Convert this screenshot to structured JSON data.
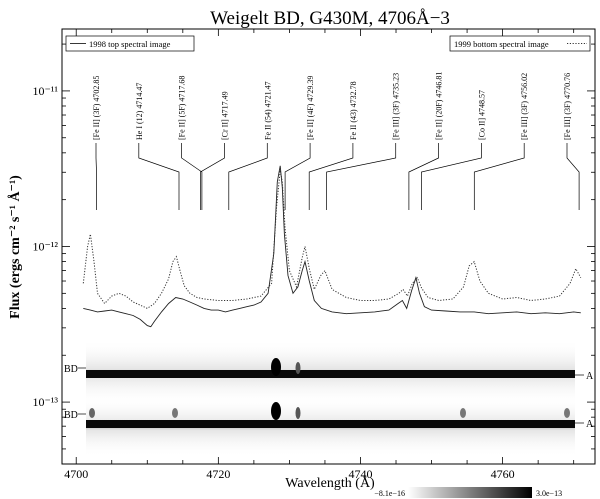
{
  "chart_data": {
    "type": "line",
    "title": "Weigelt BD, G430M, 4706Å−3",
    "xlabel": "Wavelength (Å)",
    "ylabel": "Flux (ergs cm⁻² s⁻¹ Å⁻¹)",
    "xlim": [
      4698,
      4773
    ],
    "ylim": [
      4e-14,
      2.5e-11
    ],
    "yscale": "log",
    "x_ticks": [
      4700,
      4720,
      4740,
      4760
    ],
    "y_ticks": [
      {
        "value": 1e-13,
        "label": "10⁻¹³"
      },
      {
        "value": 1e-12,
        "label": "10⁻¹²"
      },
      {
        "value": 1e-11,
        "label": "10⁻¹¹"
      }
    ],
    "legend": {
      "top_left": "1998 top spectral image",
      "top_right": "1999 bottom spectral image"
    },
    "series": [
      {
        "name": "1998 top spectral image",
        "style": "solid",
        "color": "#222222",
        "x": [
          4701,
          4702,
          4703,
          4704,
          4705,
          4706,
          4707,
          4708,
          4709,
          4710,
          4710.5,
          4711,
          4712,
          4713,
          4714,
          4715,
          4716,
          4717,
          4718,
          4719,
          4720,
          4721,
          4722,
          4723,
          4724,
          4725,
          4726,
          4727,
          4727.8,
          4728.3,
          4728.7,
          4729.0,
          4729.3,
          4729.8,
          4730.5,
          4731.2,
          4731.8,
          4732.2,
          4732.8,
          4733.5,
          4734.5,
          4736,
          4738,
          4740,
          4742,
          4744,
          4745.3,
          4745.9,
          4746.5,
          4747.2,
          4747.8,
          4748.3,
          4749,
          4750,
          4752,
          4754,
          4756,
          4758,
          4760,
          4762,
          4764,
          4766,
          4768,
          4770,
          4771
        ],
        "values": [
          4e-13,
          3.9e-13,
          3.8e-13,
          3.85e-13,
          3.9e-13,
          3.8e-13,
          3.7e-13,
          3.6e-13,
          3.4e-13,
          3.1e-13,
          3.05e-13,
          3.3e-13,
          3.8e-13,
          4.3e-13,
          4.7e-13,
          4.6e-13,
          4.4e-13,
          4.2e-13,
          4e-13,
          3.9e-13,
          3.9e-13,
          3.8e-13,
          3.9e-13,
          4e-13,
          4.1e-13,
          4.2e-13,
          4.4e-13,
          5e-13,
          9e-13,
          2.6e-12,
          3.3e-12,
          2.4e-12,
          1.2e-12,
          6.5e-13,
          5e-13,
          5.5e-13,
          7e-13,
          8e-13,
          6e-13,
          4.5e-13,
          4e-13,
          3.8e-13,
          3.7e-13,
          3.75e-13,
          3.8e-13,
          3.9e-13,
          4.3e-13,
          4.5e-13,
          4e-13,
          5.2e-13,
          6.3e-13,
          5e-13,
          4.1e-13,
          3.9e-13,
          3.85e-13,
          3.8e-13,
          3.8e-13,
          3.7e-13,
          3.75e-13,
          3.8e-13,
          3.7e-13,
          3.75e-13,
          3.7e-13,
          3.8e-13,
          3.75e-13
        ]
      },
      {
        "name": "1999 bottom spectral image",
        "style": "dotted",
        "color": "#333333",
        "x": [
          4701,
          4701.6,
          4702.0,
          4702.5,
          4703,
          4704,
          4705,
          4706,
          4707,
          4708,
          4709,
          4710,
          4711,
          4712,
          4713,
          4713.6,
          4714.1,
          4714.6,
          4715.2,
          4716,
          4717,
          4718,
          4720,
          4722,
          4724,
          4726,
          4727.5,
          4728.2,
          4728.7,
          4729.0,
          4729.4,
          4730,
          4731,
          4731.8,
          4732.2,
          4732.8,
          4733.5,
          4734.4,
          4735,
          4736,
          4738,
          4740,
          4742,
          4744,
          4745.4,
          4746,
          4746.6,
          4747.3,
          4748,
          4748.6,
          4749.5,
          4751,
          4753,
          4754.5,
          4755.3,
          4756,
          4756.8,
          4758,
          4760,
          4762,
          4764,
          4766,
          4768,
          4769.5,
          4770.3,
          4771
        ],
        "values": [
          5.8e-13,
          1e-12,
          1.2e-12,
          8e-13,
          5e-13,
          4.3e-13,
          4.8e-13,
          5e-13,
          4.8e-13,
          4.4e-13,
          4.2e-13,
          4e-13,
          4.3e-13,
          5e-13,
          6.2e-13,
          8e-13,
          8.6e-13,
          7e-13,
          5.6e-13,
          5e-13,
          4.7e-13,
          4.6e-13,
          4.5e-13,
          4.5e-13,
          4.6e-13,
          4.8e-13,
          5.8e-13,
          1.8e-12,
          3.1e-12,
          2.6e-12,
          1.3e-12,
          7e-13,
          5.5e-13,
          8.5e-13,
          1e-12,
          7.2e-13,
          5.3e-13,
          6.5e-13,
          7e-13,
          5.3e-13,
          4.7e-13,
          4.5e-13,
          4.5e-13,
          4.6e-13,
          5e-13,
          5.3e-13,
          4.8e-13,
          5.8e-13,
          6.3e-13,
          5.4e-13,
          4.7e-13,
          4.5e-13,
          4.6e-13,
          5.5e-13,
          7.5e-13,
          8e-13,
          6e-13,
          5e-13,
          4.6e-13,
          4.7e-13,
          4.5e-13,
          4.6e-13,
          4.8e-13,
          5.8e-13,
          7.2e-13,
          6.3e-13
        ]
      }
    ],
    "line_ids": [
      {
        "label": "[Fe II] (3F) 4702.85",
        "x": 4702.85
      },
      {
        "label": "He I (12) 4714.47",
        "x": 4714.47
      },
      {
        "label": "[Fe II] (5F) 4717.68",
        "x": 4717.68
      },
      {
        "label": "[Cr II] 4717.49",
        "x": 4717.49
      },
      {
        "label": "Fe II (54) 4721.47",
        "x": 4721.47
      },
      {
        "label": "[Fe II] (4F) 4729.39",
        "x": 4729.39
      },
      {
        "label": "Fe II (43) 4732.78",
        "x": 4732.78
      },
      {
        "label": "[Fe III] (3F) 4735.23",
        "x": 4735.23
      },
      {
        "label": "[Fe II] (20F) 4746.81",
        "x": 4746.81
      },
      {
        "label": "[Co II] 4748.57",
        "x": 4748.57
      },
      {
        "label": "[Fe III] (3F) 4756.02",
        "x": 4756.02
      },
      {
        "label": "[Fe III] (3F) 4770.76",
        "x": 4770.76
      }
    ],
    "spectral_images": {
      "left_labels": [
        "BD",
        "BD"
      ],
      "right_labels": [
        "A",
        "A"
      ]
    },
    "colorbar": {
      "min_label": "−8.1e−16",
      "max_label": "3.0e−13"
    }
  }
}
